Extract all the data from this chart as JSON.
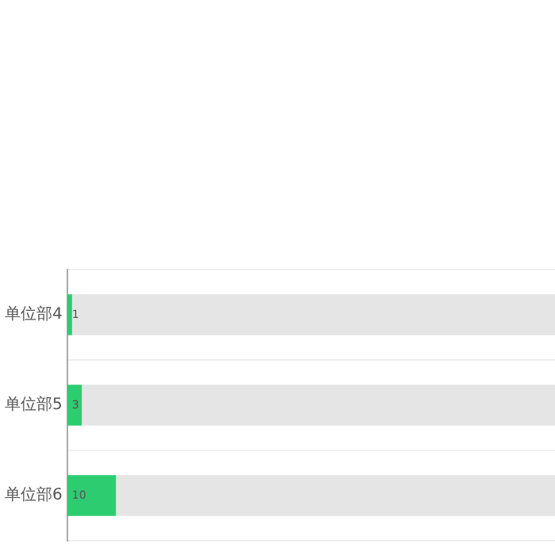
{
  "chart_data": {
    "type": "bar",
    "orientation": "horizontal",
    "stacked": true,
    "categories": [
      "单位部4",
      "单位部5",
      "单位部6"
    ],
    "series": [
      {
        "color": "#2ecc71",
        "values": [
          1,
          3,
          10
        ],
        "value_labels": [
          "1",
          "3",
          "10"
        ]
      },
      {
        "color": "#e5e5e5",
        "values": [
          99,
          97,
          90
        ],
        "value_labels": [
          null,
          null,
          null
        ]
      }
    ],
    "xlim": [
      0,
      100
    ],
    "tick_labels": "y",
    "grid": "y",
    "legend": false
  }
}
